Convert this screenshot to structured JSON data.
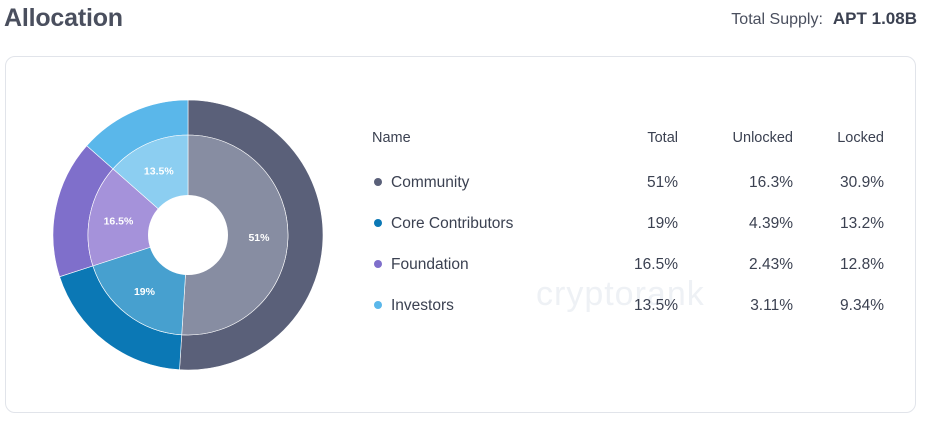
{
  "header": {
    "title": "Allocation",
    "supply_label": "Total Supply:",
    "supply_value": "APT 1.08B"
  },
  "watermark": "cryptorank",
  "table": {
    "columns": [
      "Name",
      "Total",
      "Unlocked",
      "Locked"
    ],
    "rows": [
      {
        "name": "Community",
        "total": "51%",
        "unlocked": "16.3%",
        "locked": "30.9%",
        "color": "#5a6079"
      },
      {
        "name": "Core Contributors",
        "total": "19%",
        "unlocked": "4.39%",
        "locked": "13.2%",
        "color": "#0b78b5"
      },
      {
        "name": "Foundation",
        "total": "16.5%",
        "unlocked": "2.43%",
        "locked": "12.8%",
        "color": "#7f6fcb"
      },
      {
        "name": "Investors",
        "total": "13.5%",
        "unlocked": "3.11%",
        "locked": "9.34%",
        "color": "#5ab7ea"
      }
    ]
  },
  "chart_data": {
    "type": "pie",
    "categories": [
      "Community",
      "Core Contributors",
      "Foundation",
      "Investors"
    ],
    "values": [
      51,
      19,
      16.5,
      13.5
    ],
    "labels": [
      "51%",
      "19%",
      "16.5%",
      "13.5%"
    ],
    "colors_outer": [
      "#5a6079",
      "#0b78b5",
      "#7f6fcb",
      "#5ab7ea"
    ],
    "colors_inner": [
      "#878da2",
      "#47a0cf",
      "#a592da",
      "#8ccef1"
    ]
  }
}
